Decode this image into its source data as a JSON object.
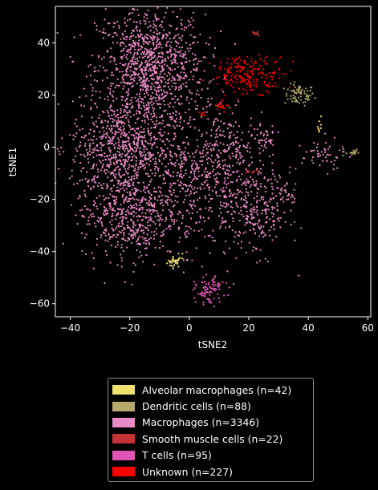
{
  "chart_data": {
    "type": "scatter",
    "xlabel": "tSNE2",
    "ylabel": "tSNE1",
    "xlim": [
      -45,
      61
    ],
    "ylim": [
      -65,
      54
    ],
    "xticks": [
      -40,
      -20,
      0,
      20,
      40,
      60
    ],
    "yticks": [
      -60,
      -40,
      -20,
      0,
      20,
      40
    ],
    "grid": false,
    "legend_position": "bottom-center",
    "series": [
      {
        "name": "Alveolar macrophages (n=42)",
        "color": "#f0e16e",
        "count": 42,
        "clusters": [
          [
            -5,
            -44,
            1.2,
            1.0,
            30
          ],
          [
            44,
            8,
            0.4,
            2.5,
            8
          ],
          [
            -3,
            -42,
            0.5,
            0.8,
            4
          ]
        ]
      },
      {
        "name": "Dendritic cells (n=88)",
        "color": "#b5a96b",
        "count": 88,
        "clusters": [
          [
            37,
            20,
            2.5,
            2.0,
            70
          ],
          [
            54,
            -2,
            1.5,
            0.8,
            18
          ]
        ]
      },
      {
        "name": "Macrophages (n=3346)",
        "color": "#e88ac5",
        "count": 3346,
        "clusters": [
          [
            -13,
            30,
            9,
            12,
            1100
          ],
          [
            -22,
            0,
            9,
            9,
            700
          ],
          [
            -20,
            -25,
            8,
            9,
            600
          ],
          [
            -3,
            -10,
            3.5,
            8,
            120
          ],
          [
            10,
            -15,
            8,
            12,
            400
          ],
          [
            24,
            -25,
            5,
            8,
            200
          ],
          [
            12,
            2,
            3.5,
            6,
            90
          ],
          [
            24,
            3,
            3,
            4,
            60
          ],
          [
            45,
            -3,
            3.5,
            3,
            50
          ],
          [
            32,
            -18,
            2,
            3,
            26
          ]
        ]
      },
      {
        "name": "Smooth muscle cells (n=22)",
        "color": "#c43236",
        "count": 22,
        "clusters": [
          [
            22,
            43.5,
            0.6,
            0.6,
            10
          ],
          [
            21,
            -9.5,
            1.2,
            0.4,
            12
          ]
        ]
      },
      {
        "name": "T cells (n=95)",
        "color": "#e055b3",
        "count": 95,
        "clusters": [
          [
            7,
            -55,
            2.5,
            2.5,
            95
          ]
        ]
      },
      {
        "name": "Unknown (n=227)",
        "color": "#ff0000",
        "count": 227,
        "clusters": [
          [
            20,
            28,
            6,
            3.5,
            200
          ],
          [
            11,
            16,
            1.0,
            1.0,
            20
          ],
          [
            4,
            13,
            0.5,
            0.5,
            7
          ]
        ]
      }
    ]
  }
}
